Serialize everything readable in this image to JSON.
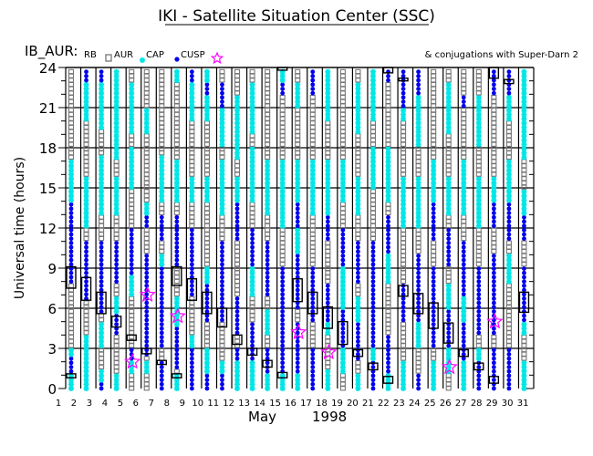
{
  "chart_data": {
    "type": "scatter",
    "title": "IKI - Satellite Situation Center (SSC)",
    "subtitle": "IB_AUR:",
    "annotation": "& conjugations with Super-Darn 2",
    "legend": {
      "placement": "top-left",
      "entries": [
        {
          "label": "RB",
          "symbol": "none"
        },
        {
          "label": "AUR",
          "symbol": "gray-square"
        },
        {
          "label": "CAP",
          "symbol": "cyan-asterisk"
        },
        {
          "label": "CUSP",
          "symbol": "blue-dot"
        },
        {
          "label": "",
          "symbol": "magenta-star"
        }
      ]
    },
    "xlabel_month": "May",
    "xlabel_year": "1998",
    "ylabel": "Universal time (hours)",
    "xlim": [
      1,
      31
    ],
    "ylim": [
      0,
      24
    ],
    "yticks": [
      "0",
      "3",
      "6",
      "9",
      "12",
      "15",
      "18",
      "21",
      "24"
    ],
    "xticks": [
      "1",
      "2",
      "3",
      "4",
      "5",
      "6",
      "7",
      "8",
      "9",
      "10",
      "11",
      "12",
      "13",
      "14",
      "15",
      "16",
      "17",
      "18",
      "19",
      "20",
      "21",
      "22",
      "23",
      "24",
      "25",
      "26",
      "27",
      "28",
      "29",
      "30",
      "31"
    ],
    "grid": true,
    "colors": {
      "aur": "#777777",
      "cap": "#00e5e5",
      "cusp": "#0000ee",
      "star": "#ff00ff",
      "box": "#000000"
    },
    "days": [
      {
        "day": 1,
        "cap": [
          [
            0,
            3
          ],
          [
            9,
            10
          ],
          [
            13.5,
            17
          ]
        ],
        "cusp": [
          [
            1,
            2.5
          ],
          [
            8,
            14
          ]
        ]
      },
      {
        "day": 2,
        "cap": [
          [
            0,
            4
          ],
          [
            12,
            16
          ],
          [
            20,
            23
          ]
        ],
        "cusp": [
          [
            6.5,
            11
          ],
          [
            23,
            24
          ]
        ]
      },
      {
        "day": 3,
        "cap": [
          [
            0,
            1.5
          ],
          [
            3,
            5
          ],
          [
            13,
            17.5
          ],
          [
            19.5,
            23
          ]
        ],
        "cusp": [
          [
            0,
            0.5
          ],
          [
            5.5,
            11
          ],
          [
            23,
            24
          ]
        ]
      },
      {
        "day": 4,
        "cap": [
          [
            0,
            1
          ],
          [
            4,
            7
          ],
          [
            13,
            16
          ],
          [
            17,
            24
          ]
        ],
        "cusp": [
          [
            4,
            5.5
          ],
          [
            8,
            11
          ]
        ]
      },
      {
        "day": 5,
        "cap": [
          [
            1,
            2
          ],
          [
            7,
            10
          ],
          [
            15,
            18
          ],
          [
            19,
            23
          ]
        ],
        "cusp": [
          [
            2,
            3
          ],
          [
            8.5,
            12
          ]
        ]
      },
      {
        "day": 6,
        "cap": [
          [
            1,
            2
          ],
          [
            5,
            6
          ],
          [
            12,
            14
          ],
          [
            19,
            21
          ]
        ],
        "cusp": [
          [
            2.5,
            10
          ],
          [
            12,
            13
          ]
        ]
      },
      {
        "day": 7,
        "cap": [
          [
            3,
            4
          ],
          [
            8,
            10
          ],
          [
            14,
            17.5
          ]
        ],
        "cusp": [
          [
            0,
            2
          ],
          [
            3,
            9
          ],
          [
            11,
            13
          ]
        ]
      },
      {
        "day": 8,
        "cap": [
          [
            0,
            1
          ],
          [
            3,
            7
          ],
          [
            9,
            11
          ],
          [
            14,
            17
          ],
          [
            23,
            24
          ]
        ],
        "cusp": [
          [
            1.5,
            4.5
          ],
          [
            9,
            13
          ]
        ]
      },
      {
        "day": 9,
        "cap": [
          [
            2.5,
            4
          ],
          [
            14,
            16
          ],
          [
            20,
            23
          ]
        ],
        "cusp": [
          [
            0,
            3
          ],
          [
            7,
            12
          ],
          [
            23,
            24
          ]
        ]
      },
      {
        "day": 10,
        "cap": [
          [
            1,
            3
          ],
          [
            8,
            9
          ],
          [
            14,
            16
          ],
          [
            20,
            24
          ]
        ],
        "cusp": [
          [
            0,
            1
          ],
          [
            5,
            8
          ],
          [
            22,
            23
          ]
        ]
      },
      {
        "day": 11,
        "cap": [
          [
            0,
            2
          ],
          [
            9,
            11
          ],
          [
            13,
            17
          ],
          [
            18,
            22
          ]
        ],
        "cusp": [
          [
            0,
            1
          ],
          [
            5,
            11
          ],
          [
            21,
            23
          ]
        ]
      },
      {
        "day": 12,
        "cap": [
          [
            0,
            3
          ],
          [
            12,
            16
          ],
          [
            17,
            22
          ]
        ],
        "cusp": [
          [
            2,
            3
          ],
          [
            4,
            7
          ],
          [
            11,
            14
          ]
        ]
      },
      {
        "day": 13,
        "cap": [
          [
            0,
            2
          ],
          [
            7,
            10
          ],
          [
            14,
            18
          ],
          [
            19,
            23
          ]
        ],
        "cusp": [
          [
            2,
            5
          ],
          [
            9,
            12
          ]
        ]
      },
      {
        "day": 14,
        "cap": [
          [
            0,
            2
          ],
          [
            4,
            6
          ],
          [
            13,
            17
          ]
        ],
        "cusp": [
          [
            1,
            3
          ],
          [
            7,
            11
          ]
        ]
      },
      {
        "day": 15,
        "cap": [
          [
            0,
            1
          ],
          [
            6,
            9
          ],
          [
            12,
            17
          ],
          [
            23,
            24
          ]
        ],
        "cusp": [
          [
            1,
            9
          ],
          [
            22,
            23
          ]
        ]
      },
      {
        "day": 16,
        "cap": [
          [
            0,
            1
          ],
          [
            10,
            12
          ],
          [
            13,
            17
          ],
          [
            21,
            23
          ]
        ],
        "cusp": [
          [
            1,
            5
          ],
          [
            6,
            10
          ],
          [
            12,
            14
          ]
        ]
      },
      {
        "day": 17,
        "cap": [
          [
            0,
            2
          ],
          [
            5,
            8
          ],
          [
            13,
            17
          ]
        ],
        "cusp": [
          [
            0,
            3
          ],
          [
            5,
            9
          ],
          [
            22,
            24
          ]
        ]
      },
      {
        "day": 18,
        "cap": [
          [
            0,
            1.5
          ],
          [
            4,
            7
          ],
          [
            13,
            17
          ],
          [
            20,
            24
          ]
        ],
        "cusp": [
          [
            5,
            8
          ],
          [
            11,
            13
          ]
        ]
      },
      {
        "day": 19,
        "cap": [
          [
            1,
            3
          ],
          [
            6,
            10
          ],
          [
            14,
            17
          ]
        ],
        "cusp": [
          [
            3,
            6
          ],
          [
            9,
            12
          ]
        ]
      },
      {
        "day": 20,
        "cap": [
          [
            0,
            1
          ],
          [
            5,
            7
          ],
          [
            13,
            16
          ],
          [
            19,
            23
          ]
        ],
        "cusp": [
          [
            2,
            5
          ],
          [
            8,
            11
          ]
        ]
      },
      {
        "day": 21,
        "cap": [
          [
            1,
            3
          ],
          [
            7,
            9
          ],
          [
            15,
            18
          ],
          [
            20,
            24
          ]
        ],
        "cusp": [
          [
            0,
            2
          ],
          [
            3,
            11
          ]
        ]
      },
      {
        "day": 22,
        "cap": [
          [
            0,
            3
          ],
          [
            8,
            11
          ],
          [
            14,
            18
          ]
        ],
        "cusp": [
          [
            1,
            4
          ],
          [
            10,
            13
          ],
          [
            23,
            24
          ]
        ]
      },
      {
        "day": 23,
        "cap": [
          [
            0,
            2
          ],
          [
            6,
            8
          ],
          [
            12,
            16
          ],
          [
            20,
            22
          ]
        ],
        "cusp": [
          [
            5,
            8
          ],
          [
            21,
            24
          ]
        ]
      },
      {
        "day": 24,
        "cap": [
          [
            0,
            1
          ],
          [
            3,
            5
          ],
          [
            12,
            16
          ],
          [
            18,
            22
          ]
        ],
        "cusp": [
          [
            0,
            1
          ],
          [
            5,
            10
          ],
          [
            22,
            24
          ]
        ]
      },
      {
        "day": 25,
        "cap": [
          [
            0,
            2
          ],
          [
            7,
            9
          ],
          [
            14,
            17
          ]
        ],
        "cusp": [
          [
            3,
            9
          ],
          [
            11,
            14
          ]
        ]
      },
      {
        "day": 26,
        "cap": [
          [
            1,
            3
          ],
          [
            6,
            8
          ],
          [
            13,
            16
          ],
          [
            19,
            23
          ]
        ],
        "cusp": [
          [
            3,
            6
          ],
          [
            9,
            12
          ]
        ]
      },
      {
        "day": 27,
        "cap": [
          [
            0,
            2
          ],
          [
            5,
            7
          ],
          [
            13,
            17
          ]
        ],
        "cusp": [
          [
            2,
            5
          ],
          [
            7,
            11
          ],
          [
            21,
            22
          ]
        ]
      },
      {
        "day": 28,
        "cap": [
          [
            1,
            3
          ],
          [
            6,
            9
          ],
          [
            12,
            16
          ],
          [
            18,
            22
          ]
        ],
        "cusp": [
          [
            0,
            2
          ],
          [
            4,
            9
          ]
        ]
      },
      {
        "day": 29,
        "cap": [
          [
            0,
            2
          ],
          [
            7,
            9
          ],
          [
            13,
            16
          ]
        ],
        "cusp": [
          [
            0,
            3
          ],
          [
            4,
            10
          ],
          [
            12,
            14
          ],
          [
            22,
            24
          ]
        ]
      },
      {
        "day": 30,
        "cap": [
          [
            1,
            3
          ],
          [
            8,
            10
          ],
          [
            14,
            17
          ],
          [
            20,
            23
          ]
        ],
        "cusp": [
          [
            0,
            3
          ],
          [
            11,
            14
          ],
          [
            22,
            24
          ]
        ]
      },
      {
        "day": 31,
        "cap": [
          [
            0,
            2
          ],
          [
            4,
            7
          ],
          [
            12,
            15
          ],
          [
            17,
            24
          ]
        ],
        "cusp": [
          [
            5,
            9
          ],
          [
            11,
            13
          ]
        ]
      }
    ],
    "conjugations": [
      {
        "day": 1,
        "from": 7.5,
        "to": 9.1
      },
      {
        "day": 1,
        "from": 0.8,
        "to": 1.1
      },
      {
        "day": 2,
        "from": 6.6,
        "to": 8.3
      },
      {
        "day": 3,
        "from": 5.6,
        "to": 7.2
      },
      {
        "day": 4,
        "from": 4.6,
        "to": 5.4
      },
      {
        "day": 5,
        "from": 3.6,
        "to": 4.0
      },
      {
        "day": 6,
        "from": 2.6,
        "to": 3.0
      },
      {
        "day": 7,
        "from": 1.8,
        "to": 2.1
      },
      {
        "day": 8,
        "from": 7.7,
        "to": 9.1
      },
      {
        "day": 8,
        "from": 0.8,
        "to": 1.1
      },
      {
        "day": 9,
        "from": 6.6,
        "to": 8.2
      },
      {
        "day": 10,
        "from": 5.6,
        "to": 7.2
      },
      {
        "day": 11,
        "from": 4.6,
        "to": 6.0
      },
      {
        "day": 12,
        "from": 3.3,
        "to": 4.0
      },
      {
        "day": 13,
        "from": 2.5,
        "to": 3.0
      },
      {
        "day": 14,
        "from": 1.6,
        "to": 2.1
      },
      {
        "day": 15,
        "from": 0.8,
        "to": 1.2
      },
      {
        "day": 15,
        "from": 23.8,
        "to": 24.0
      },
      {
        "day": 16,
        "from": 6.5,
        "to": 8.2
      },
      {
        "day": 17,
        "from": 5.6,
        "to": 7.2
      },
      {
        "day": 18,
        "from": 4.5,
        "to": 6.1
      },
      {
        "day": 19,
        "from": 3.3,
        "to": 5.0
      },
      {
        "day": 20,
        "from": 2.4,
        "to": 2.9
      },
      {
        "day": 21,
        "from": 1.4,
        "to": 1.9
      },
      {
        "day": 22,
        "from": 0.4,
        "to": 0.9
      },
      {
        "day": 22,
        "from": 23.6,
        "to": 24.0
      },
      {
        "day": 23,
        "from": 6.9,
        "to": 7.7
      },
      {
        "day": 23,
        "from": 23.0,
        "to": 23.2
      },
      {
        "day": 24,
        "from": 5.6,
        "to": 7.1
      },
      {
        "day": 25,
        "from": 4.5,
        "to": 6.4
      },
      {
        "day": 26,
        "from": 3.4,
        "to": 4.9
      },
      {
        "day": 27,
        "from": 2.4,
        "to": 2.9
      },
      {
        "day": 28,
        "from": 1.4,
        "to": 1.9
      },
      {
        "day": 29,
        "from": 0.4,
        "to": 0.9
      },
      {
        "day": 29,
        "from": 23.2,
        "to": 24.0
      },
      {
        "day": 30,
        "from": 22.8,
        "to": 23.1
      },
      {
        "day": 31,
        "from": 5.7,
        "to": 7.2
      }
    ],
    "stars": [
      {
        "day": 5,
        "hour": 2.0
      },
      {
        "day": 6,
        "hour": 7.0
      },
      {
        "day": 8,
        "hour": 5.4
      },
      {
        "day": 16,
        "hour": 4.2
      },
      {
        "day": 18,
        "hour": 2.7
      },
      {
        "day": 26,
        "hour": 1.6
      },
      {
        "day": 29,
        "hour": 5.0
      }
    ]
  }
}
